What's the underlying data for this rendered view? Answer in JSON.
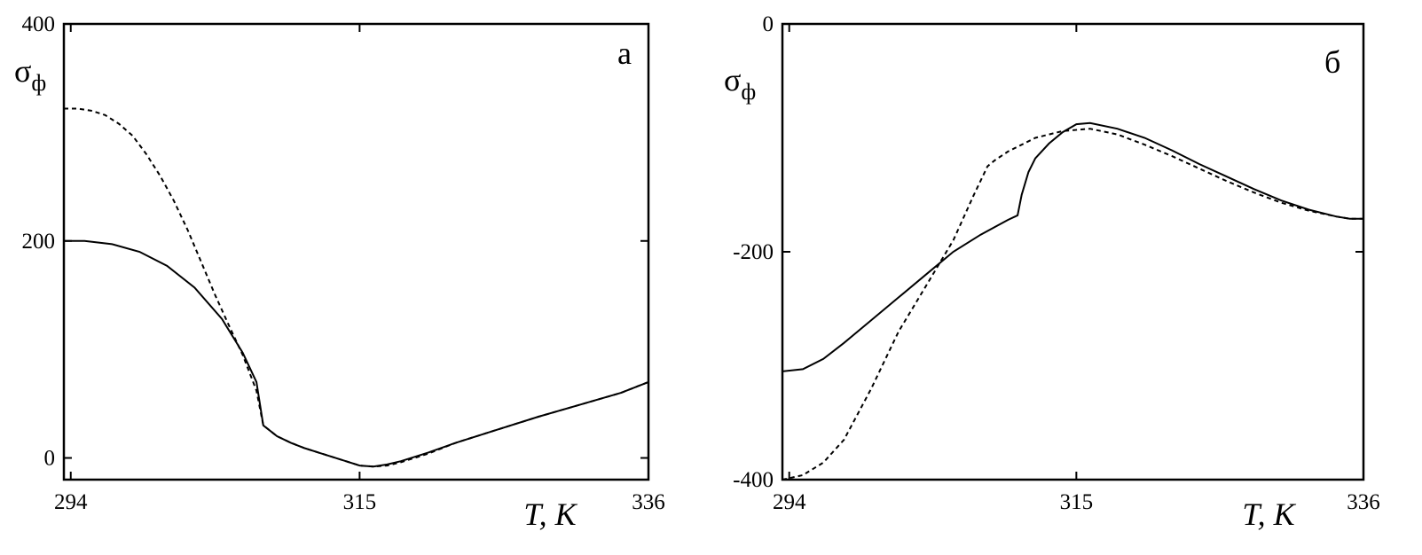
{
  "chart_data": [
    {
      "type": "line",
      "panel_label": "а",
      "xlabel": "T, K",
      "ylabel": {
        "main": "σ",
        "sub": "ф"
      },
      "xlim": [
        293.5,
        336
      ],
      "ylim": [
        -20,
        400
      ],
      "x_ticks": [
        294,
        315,
        336
      ],
      "y_ticks": [
        0,
        200,
        400
      ],
      "x_tick_labels": [
        "294",
        "315",
        "336"
      ],
      "y_tick_labels": [
        "0",
        "200",
        "400"
      ],
      "grid": false,
      "series": [
        {
          "style": "solid",
          "x": [
            293.5,
            295,
            297,
            299,
            301,
            303,
            305,
            306.5,
            307.5,
            308,
            309,
            310,
            311,
            312,
            313,
            314,
            315,
            316,
            317,
            318,
            320,
            322,
            325,
            328,
            331,
            334,
            336
          ],
          "y": [
            200,
            200,
            197,
            190,
            177,
            157,
            128,
            97,
            70,
            30,
            20,
            14,
            9,
            5,
            1,
            -3,
            -7,
            -8,
            -6,
            -3,
            5,
            14,
            26,
            38,
            49,
            60,
            70
          ]
        },
        {
          "style": "dashed",
          "x": [
            293.5,
            294.5,
            295.5,
            296.5,
            297.5,
            298.5,
            299.5,
            300.5,
            301.5,
            302.5,
            303.5,
            304.5,
            305.5,
            306.5,
            307.5,
            308,
            309,
            310,
            311,
            312,
            313,
            314,
            315,
            316,
            317,
            318,
            320,
            322,
            325,
            328,
            331,
            334,
            336
          ],
          "y": [
            322,
            322,
            320,
            316,
            308,
            297,
            280,
            260,
            237,
            210,
            180,
            150,
            122,
            95,
            62,
            30,
            20,
            14,
            9,
            5,
            1,
            -3,
            -7,
            -8,
            -7,
            -4,
            4,
            14,
            26,
            38,
            49,
            60,
            70
          ]
        }
      ]
    },
    {
      "type": "line",
      "panel_label": "б",
      "xlabel": "T, K",
      "ylabel": {
        "main": "σ",
        "sub": "ф"
      },
      "xlim": [
        293.5,
        336
      ],
      "ylim": [
        -400,
        0
      ],
      "x_ticks": [
        294,
        315,
        336
      ],
      "y_ticks": [
        -400,
        -200,
        0
      ],
      "x_tick_labels": [
        "294",
        "315",
        "336"
      ],
      "y_tick_labels": [
        "-400",
        "-200",
        "0"
      ],
      "grid": false,
      "series": [
        {
          "style": "solid",
          "x": [
            293.5,
            295,
            296.5,
            298,
            300,
            302,
            304,
            306,
            308,
            310,
            310.7,
            311,
            311.5,
            312,
            313,
            314,
            315,
            316,
            318,
            320,
            322,
            324,
            326,
            328,
            330,
            332,
            334,
            335,
            336
          ],
          "y": [
            -305,
            -303,
            -294,
            -280,
            -260,
            -240,
            -220,
            -200,
            -185,
            -172,
            -168,
            -150,
            -130,
            -118,
            -105,
            -95,
            -88,
            -87,
            -92,
            -100,
            -111,
            -123,
            -134,
            -145,
            -155,
            -163,
            -169,
            -171,
            -171
          ]
        },
        {
          "style": "dashed",
          "x": [
            293.5,
            295,
            296.5,
            298,
            300,
            302,
            304,
            306,
            307.5,
            308.5,
            309,
            310,
            312,
            314,
            316,
            318,
            320,
            322,
            324,
            326,
            328,
            330,
            332,
            334,
            335,
            336
          ],
          "y": [
            -400,
            -396,
            -385,
            -365,
            -320,
            -270,
            -230,
            -190,
            -150,
            -125,
            -120,
            -112,
            -100,
            -94,
            -92,
            -97,
            -106,
            -116,
            -127,
            -138,
            -148,
            -157,
            -164,
            -169,
            -171,
            -171
          ]
        }
      ]
    }
  ]
}
